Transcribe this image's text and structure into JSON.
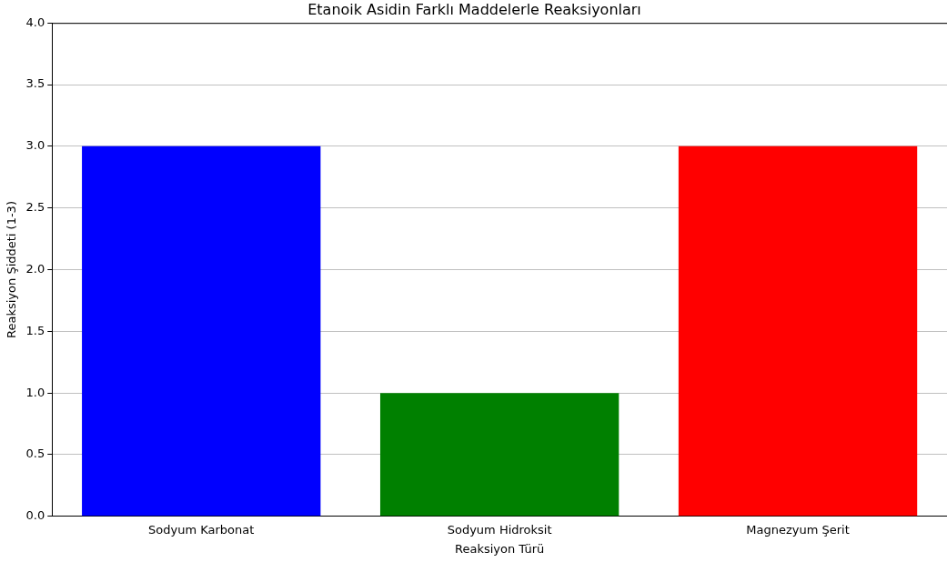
{
  "chart_data": {
    "type": "bar",
    "title": "Etanoik Asidin Farklı Maddelerle Reaksiyonları",
    "xlabel": "Reaksiyon Türü",
    "ylabel": "Reaksiyon Şiddeti (1-3)",
    "categories": [
      "Sodyum Karbonat",
      "Sodyum Hidroksit",
      "Magnezyum Şerit"
    ],
    "values": [
      3,
      1,
      3
    ],
    "colors": [
      "#0000ff",
      "#008000",
      "#ff0000"
    ],
    "ylim": [
      0,
      4
    ],
    "yticks": [
      {
        "value": 0,
        "label": "0.0"
      },
      {
        "value": 0.5,
        "label": "0.5"
      },
      {
        "value": 1,
        "label": "1.0"
      },
      {
        "value": 1.5,
        "label": "1.5"
      },
      {
        "value": 2,
        "label": "2.0"
      },
      {
        "value": 2.5,
        "label": "2.5"
      },
      {
        "value": 3,
        "label": "3.0"
      },
      {
        "value": 3.5,
        "label": "3.5"
      },
      {
        "value": 4,
        "label": "4.0"
      }
    ],
    "grid": "y"
  }
}
